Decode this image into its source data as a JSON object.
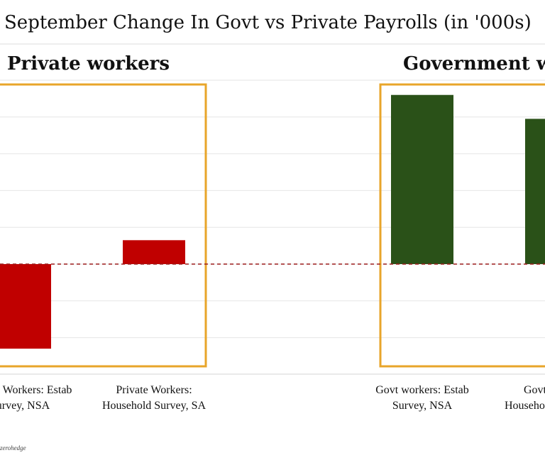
{
  "chart_data": {
    "type": "bar",
    "title": "September Change In Govt vs Private Payrolls (in '000s)",
    "groups": [
      {
        "label": "Private workers",
        "box_color": "#e8a52a",
        "bar_color": "#c00000"
      },
      {
        "label": "Government workers",
        "box_color": "#e8a52a",
        "bar_color": "#2a5118"
      }
    ],
    "categories": [
      {
        "label_lines": [
          "Private Workers: Estab",
          "Survey, NSA"
        ],
        "group": 0,
        "value": -230
      },
      {
        "label_lines": [
          "Private Workers:",
          "Household Survey, SA"
        ],
        "group": 0,
        "value": 65
      },
      {
        "label_lines": [
          "Govt workers: Estab",
          "Survey, NSA"
        ],
        "group": 1,
        "value": 460
      },
      {
        "label_lines": [
          "Govt workers:",
          "Household Survey, SA"
        ],
        "group": 1,
        "value": 395
      }
    ],
    "ylim": [
      -300,
      500
    ],
    "grid_step": 100,
    "zero_line": {
      "style": "dashed",
      "color": "#9b1c1c"
    },
    "xlabel": "",
    "ylabel": "",
    "footer": "zerohedge"
  }
}
